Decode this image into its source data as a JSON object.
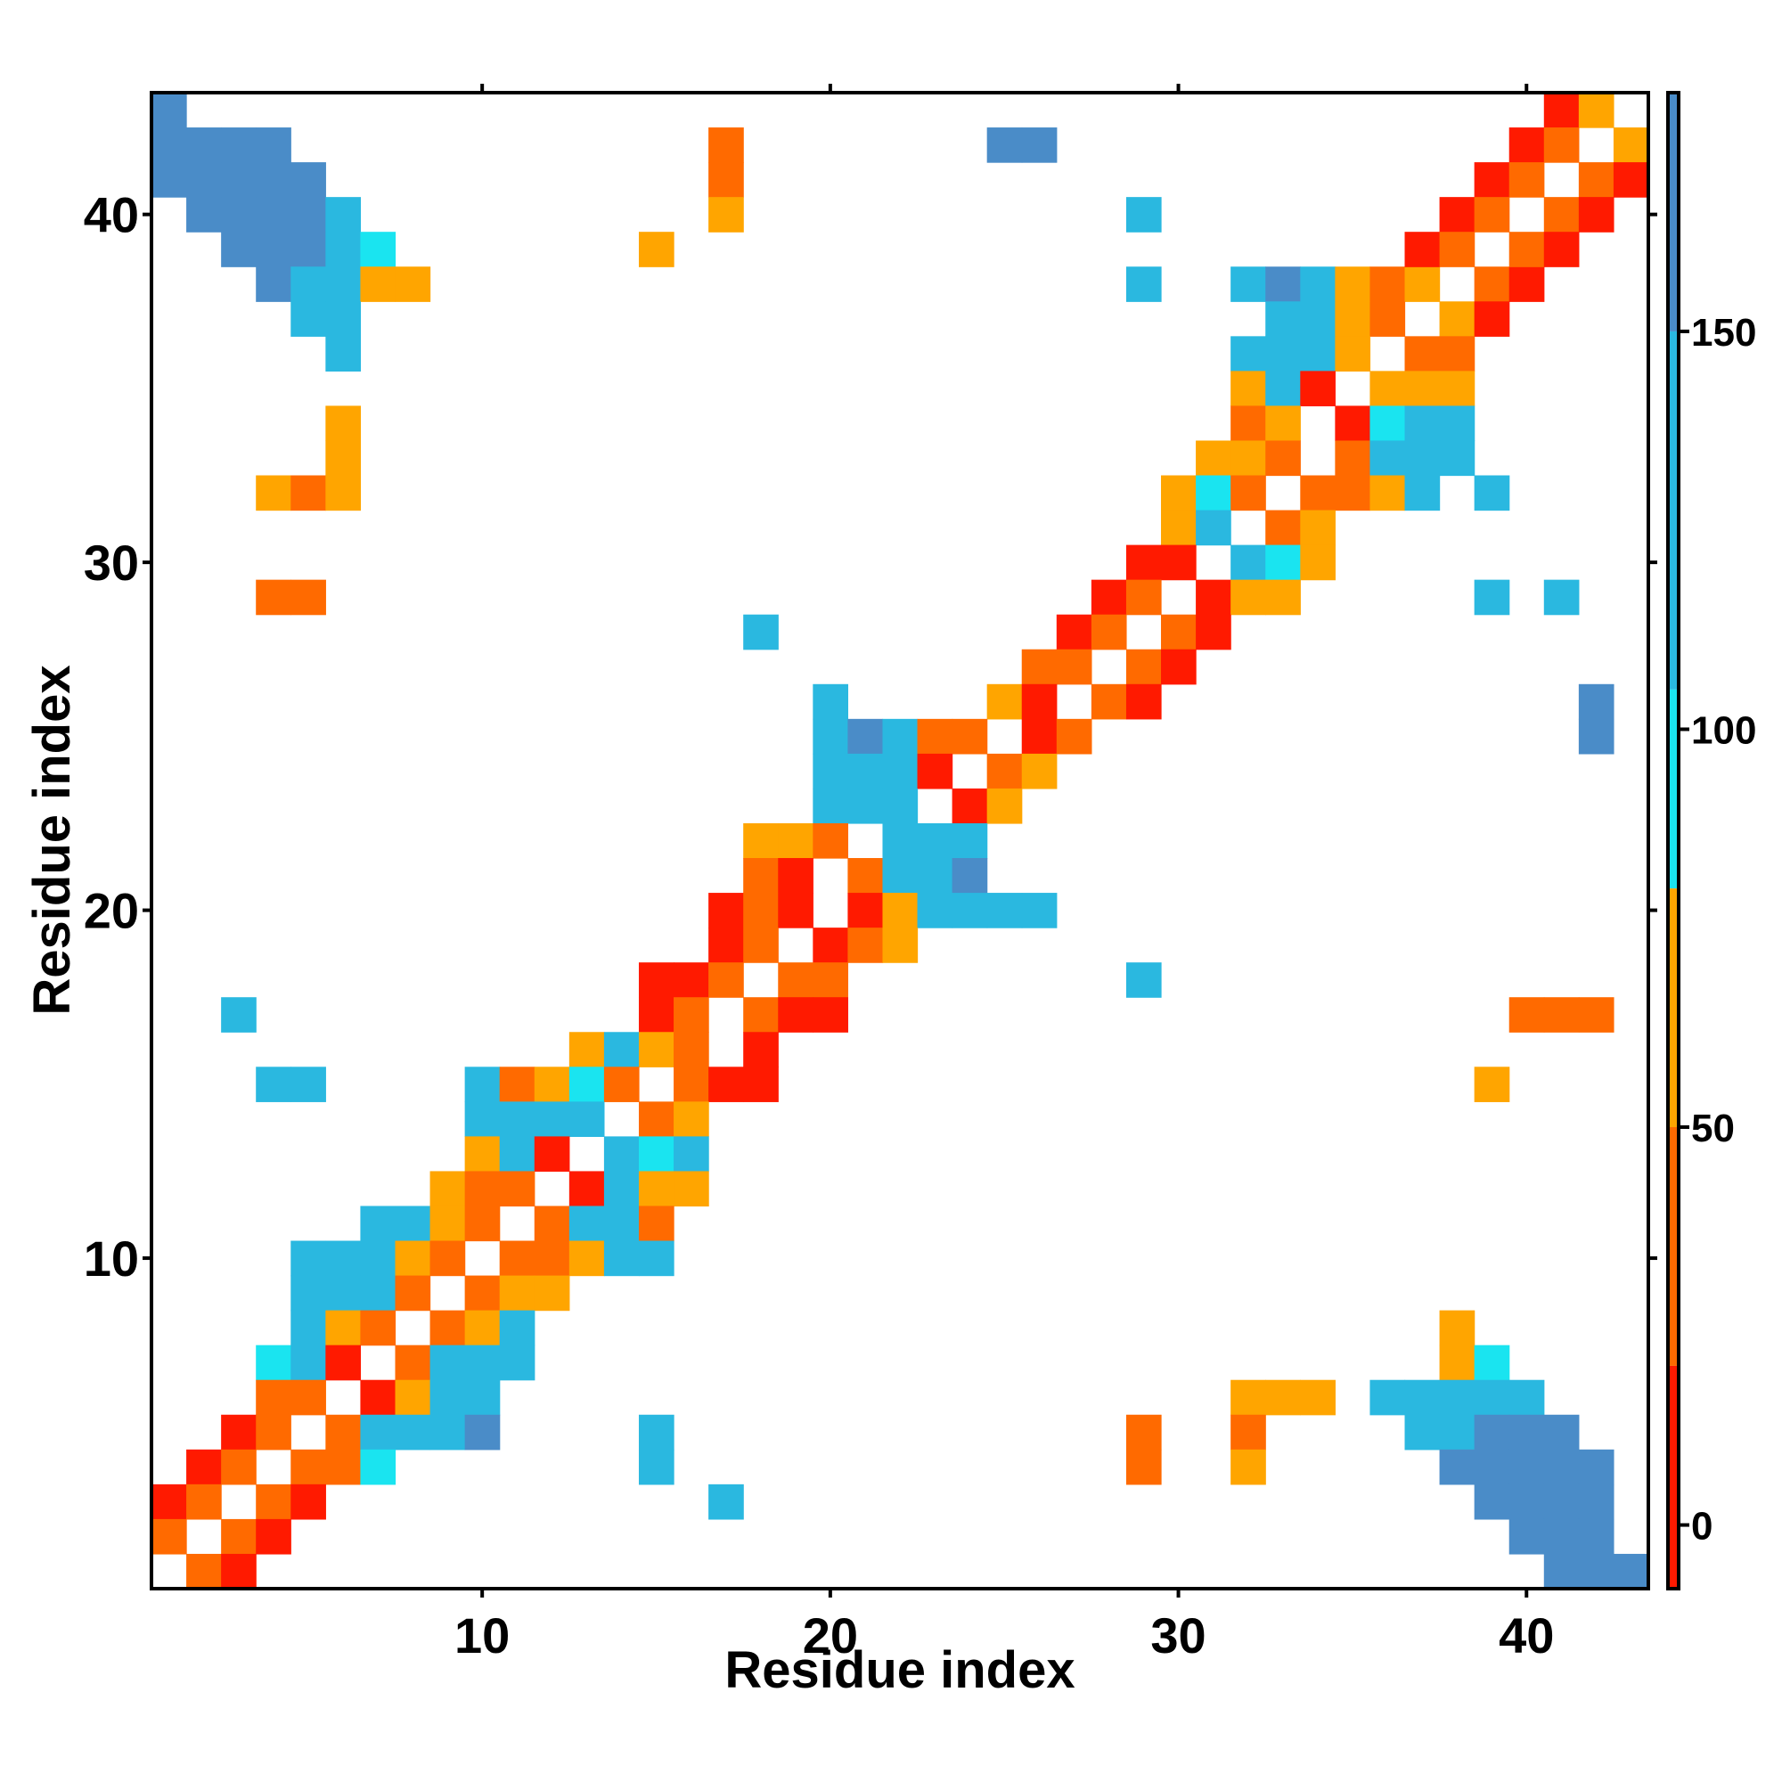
{
  "chart_data": {
    "type": "heatmap",
    "title": "",
    "xlabel": "Residue index",
    "ylabel": "Residue index",
    "xlim": [
      0.5,
      43.5
    ],
    "ylim": [
      0.5,
      43.5
    ],
    "x_ticks": [
      10,
      20,
      30,
      40
    ],
    "y_ticks": [
      10,
      20,
      30,
      40
    ],
    "grid": false,
    "colorbar": {
      "ticks": [
        0,
        50,
        100,
        150
      ],
      "range": [
        -8,
        180
      ],
      "bands": [
        {
          "from": -8,
          "to": 20,
          "color": "#ff1a00"
        },
        {
          "from": 20,
          "to": 50,
          "color": "#ff6a00"
        },
        {
          "from": 50,
          "to": 80,
          "color": "#ffa500"
        },
        {
          "from": 80,
          "to": 105,
          "color": "#1ae4f0"
        },
        {
          "from": 105,
          "to": 150,
          "color": "#2ab8e0"
        },
        {
          "from": 150,
          "to": 180,
          "color": "#4a8cc8"
        }
      ]
    },
    "description_of_cells": "Each cell [x, y, value] is a residue pair; value encodes an angle-like metric (0–180). Empty cells are blank.",
    "cells": [
      [
        1,
        43,
        170
      ],
      [
        1,
        42,
        170
      ],
      [
        2,
        42,
        170
      ],
      [
        3,
        42,
        170
      ],
      [
        4,
        42,
        170
      ],
      [
        1,
        41,
        170
      ],
      [
        2,
        41,
        170
      ],
      [
        3,
        41,
        170
      ],
      [
        4,
        41,
        170
      ],
      [
        5,
        41,
        170
      ],
      [
        2,
        40,
        170
      ],
      [
        3,
        40,
        170
      ],
      [
        4,
        40,
        170
      ],
      [
        5,
        40,
        170
      ],
      [
        6,
        40,
        140
      ],
      [
        3,
        39,
        170
      ],
      [
        4,
        39,
        170
      ],
      [
        5,
        39,
        170
      ],
      [
        6,
        39,
        140
      ],
      [
        7,
        39,
        95
      ],
      [
        4,
        38,
        170
      ],
      [
        5,
        38,
        140
      ],
      [
        6,
        38,
        120
      ],
      [
        7,
        38,
        60
      ],
      [
        8,
        38,
        60
      ],
      [
        5,
        37,
        110
      ],
      [
        6,
        37,
        110
      ],
      [
        6,
        36,
        110
      ],
      [
        6,
        34,
        60
      ],
      [
        6,
        33,
        60
      ],
      [
        4,
        32,
        60
      ],
      [
        5,
        32,
        40
      ],
      [
        6,
        32,
        65
      ],
      [
        4,
        29,
        40
      ],
      [
        5,
        29,
        40
      ],
      [
        17,
        42,
        40
      ],
      [
        17,
        41,
        45
      ],
      [
        17,
        40,
        55
      ],
      [
        15,
        39,
        65
      ],
      [
        25,
        42,
        170
      ],
      [
        26,
        42,
        170
      ],
      [
        29,
        40,
        140
      ],
      [
        29,
        38,
        120
      ],
      [
        32,
        38,
        140
      ],
      [
        33,
        38,
        150
      ],
      [
        34,
        38,
        130
      ],
      [
        35,
        38,
        70
      ],
      [
        36,
        38,
        40
      ],
      [
        37,
        38,
        50
      ],
      [
        39,
        38,
        40
      ],
      [
        40,
        38,
        15
      ],
      [
        33,
        37,
        140
      ],
      [
        34,
        37,
        130
      ],
      [
        35,
        37,
        60
      ],
      [
        36,
        37,
        45
      ],
      [
        38,
        37,
        50
      ],
      [
        39,
        37,
        10
      ],
      [
        32,
        36,
        120
      ],
      [
        33,
        36,
        130
      ],
      [
        34,
        36,
        120
      ],
      [
        35,
        36,
        50
      ],
      [
        37,
        36,
        40
      ],
      [
        38,
        36,
        45
      ],
      [
        32,
        35,
        60
      ],
      [
        33,
        35,
        110
      ],
      [
        34,
        35,
        5
      ],
      [
        36,
        35,
        50
      ],
      [
        37,
        35,
        60
      ],
      [
        38,
        35,
        70
      ],
      [
        32,
        34,
        40
      ],
      [
        33,
        34,
        50
      ],
      [
        35,
        34,
        10
      ],
      [
        36,
        34,
        95
      ],
      [
        37,
        34,
        110
      ],
      [
        38,
        34,
        125
      ],
      [
        31,
        33,
        60
      ],
      [
        32,
        33,
        50
      ],
      [
        33,
        33,
        40
      ],
      [
        35,
        33,
        40
      ],
      [
        36,
        33,
        120
      ],
      [
        37,
        33,
        130
      ],
      [
        38,
        33,
        140
      ],
      [
        30,
        32,
        60
      ],
      [
        31,
        32,
        95
      ],
      [
        32,
        32,
        40
      ],
      [
        34,
        32,
        40
      ],
      [
        35,
        32,
        35
      ],
      [
        36,
        32,
        70
      ],
      [
        37,
        32,
        110
      ],
      [
        39,
        32,
        130
      ],
      [
        30,
        31,
        60
      ],
      [
        31,
        31,
        110
      ],
      [
        33,
        31,
        40
      ],
      [
        34,
        31,
        60
      ],
      [
        29,
        30,
        15
      ],
      [
        30,
        30,
        5
      ],
      [
        32,
        30,
        115
      ],
      [
        33,
        30,
        95
      ],
      [
        34,
        30,
        65
      ],
      [
        28,
        29,
        10
      ],
      [
        29,
        29,
        40
      ],
      [
        31,
        29,
        10
      ],
      [
        32,
        29,
        60
      ],
      [
        33,
        29,
        60
      ],
      [
        39,
        29,
        120
      ],
      [
        41,
        29,
        140
      ],
      [
        27,
        28,
        15
      ],
      [
        28,
        28,
        45
      ],
      [
        30,
        28,
        40
      ],
      [
        31,
        28,
        10
      ],
      [
        18,
        28,
        140
      ],
      [
        26,
        27,
        35
      ],
      [
        27,
        27,
        40
      ],
      [
        29,
        27,
        40
      ],
      [
        30,
        27,
        10
      ],
      [
        25,
        26,
        55
      ],
      [
        26,
        26,
        5
      ],
      [
        28,
        26,
        45
      ],
      [
        29,
        26,
        10
      ],
      [
        20,
        26,
        140
      ],
      [
        42,
        26,
        170
      ],
      [
        20,
        25,
        140
      ],
      [
        21,
        25,
        160
      ],
      [
        22,
        25,
        125
      ],
      [
        23,
        25,
        45
      ],
      [
        24,
        25,
        40
      ],
      [
        26,
        25,
        10
      ],
      [
        27,
        25,
        40
      ],
      [
        42,
        25,
        170
      ],
      [
        20,
        24,
        140
      ],
      [
        21,
        24,
        140
      ],
      [
        22,
        24,
        125
      ],
      [
        23,
        24,
        10
      ],
      [
        25,
        24,
        40
      ],
      [
        26,
        24,
        65
      ],
      [
        20,
        23,
        115
      ],
      [
        21,
        23,
        115
      ],
      [
        22,
        23,
        115
      ],
      [
        24,
        23,
        10
      ],
      [
        25,
        23,
        60
      ],
      [
        18,
        22,
        60
      ],
      [
        19,
        22,
        60
      ],
      [
        20,
        22,
        40
      ],
      [
        22,
        22,
        110
      ],
      [
        23,
        22,
        120
      ],
      [
        24,
        22,
        120
      ],
      [
        18,
        21,
        40
      ],
      [
        19,
        21,
        10
      ],
      [
        21,
        21,
        45
      ],
      [
        22,
        21,
        110
      ],
      [
        23,
        21,
        140
      ],
      [
        24,
        21,
        160
      ],
      [
        17,
        20,
        15
      ],
      [
        18,
        20,
        40
      ],
      [
        19,
        20,
        10
      ],
      [
        21,
        20,
        10
      ],
      [
        22,
        20,
        60
      ],
      [
        23,
        20,
        120
      ],
      [
        24,
        20,
        140
      ],
      [
        25,
        20,
        140
      ],
      [
        26,
        20,
        140
      ],
      [
        17,
        19,
        15
      ],
      [
        18,
        19,
        45
      ],
      [
        20,
        19,
        10
      ],
      [
        21,
        19,
        35
      ],
      [
        22,
        19,
        60
      ],
      [
        15,
        18,
        15
      ],
      [
        16,
        18,
        15
      ],
      [
        17,
        18,
        40
      ],
      [
        19,
        18,
        40
      ],
      [
        20,
        18,
        35
      ],
      [
        29,
        18,
        140
      ],
      [
        15,
        17,
        15
      ],
      [
        16,
        17,
        40
      ],
      [
        18,
        17,
        40
      ],
      [
        19,
        17,
        15
      ],
      [
        20,
        17,
        15
      ],
      [
        3,
        17,
        120
      ],
      [
        40,
        17,
        40
      ],
      [
        41,
        17,
        40
      ],
      [
        42,
        17,
        35
      ],
      [
        13,
        16,
        60
      ],
      [
        14,
        16,
        110
      ],
      [
        15,
        16,
        60
      ],
      [
        16,
        16,
        40
      ],
      [
        18,
        16,
        15
      ],
      [
        10,
        15,
        110
      ],
      [
        11,
        15,
        45
      ],
      [
        12,
        15,
        65
      ],
      [
        13,
        15,
        95
      ],
      [
        14,
        15,
        45
      ],
      [
        16,
        15,
        40
      ],
      [
        17,
        15,
        10
      ],
      [
        18,
        15,
        15
      ],
      [
        4,
        15,
        120
      ],
      [
        5,
        15,
        120
      ],
      [
        39,
        15,
        65
      ],
      [
        10,
        14,
        120
      ],
      [
        11,
        14,
        120
      ],
      [
        12,
        14,
        120
      ],
      [
        13,
        14,
        120
      ],
      [
        15,
        14,
        40
      ],
      [
        16,
        14,
        55
      ],
      [
        10,
        13,
        60
      ],
      [
        11,
        13,
        120
      ],
      [
        12,
        13,
        5
      ],
      [
        14,
        13,
        120
      ],
      [
        15,
        13,
        95
      ],
      [
        16,
        13,
        115
      ],
      [
        9,
        12,
        50
      ],
      [
        10,
        12,
        40
      ],
      [
        11,
        12,
        45
      ],
      [
        13,
        12,
        10
      ],
      [
        14,
        12,
        110
      ],
      [
        15,
        12,
        60
      ],
      [
        16,
        12,
        50
      ],
      [
        7,
        11,
        110
      ],
      [
        8,
        11,
        110
      ],
      [
        9,
        11,
        65
      ],
      [
        10,
        11,
        40
      ],
      [
        12,
        11,
        40
      ],
      [
        13,
        11,
        120
      ],
      [
        14,
        11,
        120
      ],
      [
        15,
        11,
        45
      ],
      [
        5,
        10,
        140
      ],
      [
        6,
        10,
        120
      ],
      [
        7,
        10,
        110
      ],
      [
        8,
        10,
        65
      ],
      [
        9,
        10,
        40
      ],
      [
        11,
        10,
        40
      ],
      [
        12,
        10,
        35
      ],
      [
        13,
        10,
        65
      ],
      [
        14,
        10,
        120
      ],
      [
        15,
        10,
        110
      ],
      [
        5,
        9,
        120
      ],
      [
        6,
        9,
        120
      ],
      [
        7,
        9,
        120
      ],
      [
        8,
        9,
        40
      ],
      [
        10,
        9,
        45
      ],
      [
        11,
        9,
        60
      ],
      [
        12,
        9,
        50
      ],
      [
        5,
        8,
        110
      ],
      [
        6,
        8,
        60
      ],
      [
        7,
        8,
        45
      ],
      [
        9,
        8,
        45
      ],
      [
        10,
        8,
        65
      ],
      [
        11,
        8,
        110
      ],
      [
        38,
        8,
        55
      ],
      [
        4,
        7,
        95
      ],
      [
        5,
        7,
        120
      ],
      [
        6,
        7,
        10
      ],
      [
        8,
        7,
        45
      ],
      [
        9,
        7,
        110
      ],
      [
        10,
        7,
        110
      ],
      [
        11,
        7,
        110
      ],
      [
        38,
        7,
        65
      ],
      [
        39,
        7,
        95
      ],
      [
        4,
        6,
        35
      ],
      [
        5,
        6,
        40
      ],
      [
        7,
        6,
        10
      ],
      [
        8,
        6,
        65
      ],
      [
        9,
        6,
        120
      ],
      [
        10,
        6,
        130
      ],
      [
        32,
        6,
        65
      ],
      [
        33,
        6,
        60
      ],
      [
        34,
        6,
        60
      ],
      [
        36,
        6,
        110
      ],
      [
        37,
        6,
        110
      ],
      [
        38,
        6,
        120
      ],
      [
        39,
        6,
        130
      ],
      [
        40,
        6,
        140
      ],
      [
        3,
        5,
        15
      ],
      [
        4,
        5,
        40
      ],
      [
        6,
        5,
        40
      ],
      [
        7,
        5,
        110
      ],
      [
        8,
        5,
        110
      ],
      [
        9,
        5,
        120
      ],
      [
        10,
        5,
        150
      ],
      [
        15,
        5,
        120
      ],
      [
        29,
        5,
        40
      ],
      [
        32,
        5,
        45
      ],
      [
        37,
        5,
        120
      ],
      [
        38,
        5,
        140
      ],
      [
        39,
        5,
        170
      ],
      [
        40,
        5,
        170
      ],
      [
        41,
        5,
        170
      ],
      [
        2,
        4,
        15
      ],
      [
        3,
        4,
        40
      ],
      [
        5,
        4,
        40
      ],
      [
        6,
        4,
        35
      ],
      [
        7,
        4,
        95
      ],
      [
        15,
        4,
        120
      ],
      [
        29,
        4,
        40
      ],
      [
        32,
        4,
        55
      ],
      [
        38,
        4,
        170
      ],
      [
        39,
        4,
        170
      ],
      [
        40,
        4,
        170
      ],
      [
        41,
        4,
        170
      ],
      [
        42,
        4,
        170
      ],
      [
        1,
        3,
        15
      ],
      [
        2,
        3,
        40
      ],
      [
        4,
        3,
        40
      ],
      [
        5,
        3,
        15
      ],
      [
        17,
        3,
        120
      ],
      [
        39,
        3,
        170
      ],
      [
        40,
        3,
        170
      ],
      [
        41,
        3,
        170
      ],
      [
        42,
        3,
        170
      ],
      [
        1,
        2,
        45
      ],
      [
        3,
        2,
        40
      ],
      [
        4,
        2,
        15
      ],
      [
        40,
        2,
        170
      ],
      [
        41,
        2,
        170
      ],
      [
        42,
        2,
        170
      ],
      [
        2,
        1,
        45
      ],
      [
        3,
        1,
        15
      ],
      [
        41,
        1,
        170
      ],
      [
        42,
        1,
        170
      ],
      [
        43,
        1,
        170
      ],
      [
        41,
        43,
        10
      ],
      [
        42,
        43,
        60
      ],
      [
        40,
        42,
        10
      ],
      [
        41,
        42,
        40
      ],
      [
        43,
        42,
        60
      ],
      [
        39,
        41,
        10
      ],
      [
        40,
        41,
        40
      ],
      [
        42,
        41,
        40
      ],
      [
        43,
        41,
        10
      ],
      [
        38,
        40,
        10
      ],
      [
        39,
        40,
        40
      ],
      [
        41,
        40,
        40
      ],
      [
        42,
        40,
        10
      ],
      [
        37,
        39,
        10
      ],
      [
        38,
        39,
        40
      ],
      [
        40,
        39,
        40
      ],
      [
        41,
        39,
        10
      ]
    ]
  }
}
